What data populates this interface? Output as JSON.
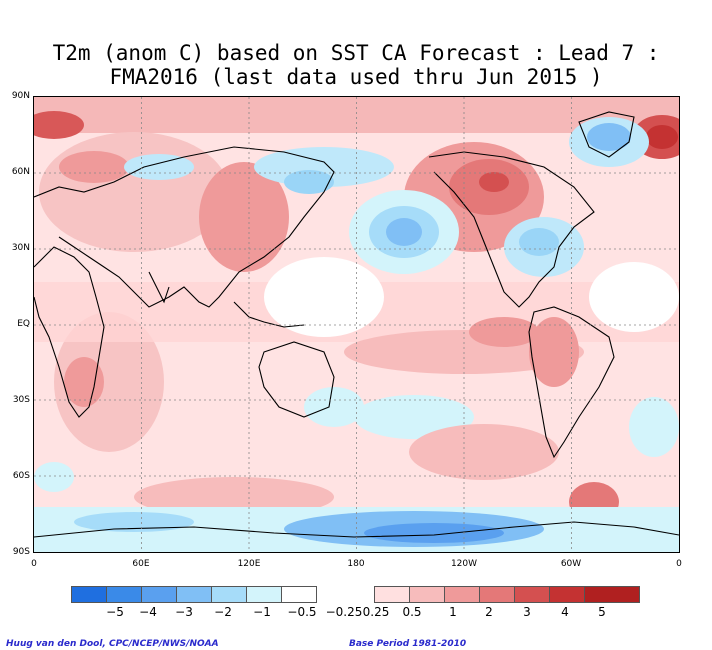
{
  "title": {
    "line1": "T2m (anom C) based on SST CA Forecast : Lead 7 :",
    "line2": "FMA2016 (last data used thru Jun 2015 )"
  },
  "axes": {
    "lat_labels": [
      "90N",
      "60N",
      "30N",
      "EQ",
      "30S",
      "60S",
      "90S"
    ],
    "lon_labels": [
      "0",
      "60E",
      "120E",
      "180",
      "120W",
      "60W",
      "0"
    ]
  },
  "colorbar": {
    "colors": [
      "#1f6fe0",
      "#3a8ae8",
      "#5aa0ef",
      "#80bff5",
      "#a6dcf9",
      "#d3f4fb",
      "#ffffff",
      "#ffe0e0",
      "#f7bcbc",
      "#ef9a9a",
      "#e47878",
      "#d45050",
      "#c43232",
      "#b02020"
    ],
    "labels": [
      "−5",
      "−4",
      "−3",
      "−2",
      "−1",
      "−0.5",
      "−0.25",
      "0.25",
      "0.5",
      "1",
      "2",
      "3",
      "4",
      "5"
    ]
  },
  "credits": {
    "left": "Huug van den Dool, CPC/NCEP/NWS/NOAA",
    "right": "Base Period 1981-2010"
  }
}
